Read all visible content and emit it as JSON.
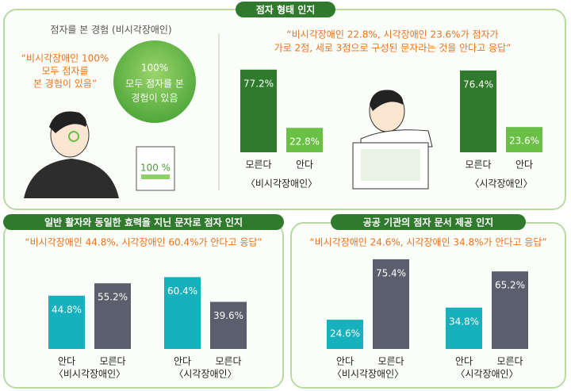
{
  "intro": {
    "title": "점자를 본 경험 (비시각장애인)",
    "quote": [
      "“비시각장애인 100%",
      "모두 점자를",
      "본 경험이 있음”"
    ],
    "bubble": [
      "100%",
      "모두 점자를 본",
      "경험이 있음"
    ],
    "paper": "100 %"
  },
  "chart_data": [
    {
      "type": "bar",
      "title": "점자 형태 인지",
      "subtitle": [
        "“비시각장애인 22.8%, 시각장애인 23.6%가 점자가",
        "가로 2점, 세로 3점으로 구성된 문자라는 것을 안다고 응답”"
      ],
      "series": [
        {
          "name": "〈비시각장애인〉",
          "categories": [
            "모른다",
            "안다"
          ],
          "values": [
            77.2,
            22.8
          ],
          "value_labels": [
            "77.2%",
            "22.8%"
          ],
          "colors": [
            "#2f7a2c",
            "#6abf45"
          ]
        },
        {
          "name": "〈시각장애인〉",
          "categories": [
            "모른다",
            "안다"
          ],
          "values": [
            76.4,
            23.6
          ],
          "value_labels": [
            "76.4%",
            "23.6%"
          ],
          "colors": [
            "#2f7a2c",
            "#6abf45"
          ]
        }
      ]
    },
    {
      "type": "bar",
      "title": "일반 활자와 동일한 효력을 지닌 문자로 점자 인지",
      "subtitle": [
        "“비시각장애인 44.8%, 시각장애인 60.4%가 안다고 응답”"
      ],
      "series": [
        {
          "name": "〈비시각장애인〉",
          "categories": [
            "안다",
            "모른다"
          ],
          "values": [
            44.8,
            55.2
          ],
          "value_labels": [
            "44.8%",
            "55.2%"
          ],
          "colors": [
            "#16b1bc",
            "#5b5e6d"
          ]
        },
        {
          "name": "〈시각장애인〉",
          "categories": [
            "안다",
            "모른다"
          ],
          "values": [
            60.4,
            39.6
          ],
          "value_labels": [
            "60.4%",
            "39.6%"
          ],
          "colors": [
            "#16b1bc",
            "#5b5e6d"
          ]
        }
      ]
    },
    {
      "type": "bar",
      "title": "공공 기관의 점자 문서 제공 인지",
      "subtitle": [
        "“비시각장애인 24.6%, 시각장애인 34.8%가 안다고 응답”"
      ],
      "series": [
        {
          "name": "〈비시각장애인〉",
          "categories": [
            "안다",
            "모른다"
          ],
          "values": [
            24.6,
            75.4
          ],
          "value_labels": [
            "24.6%",
            "75.4%"
          ],
          "colors": [
            "#16b1bc",
            "#5b5e6d"
          ]
        },
        {
          "name": "〈시각장애인〉",
          "categories": [
            "안다",
            "모른다"
          ],
          "values": [
            34.8,
            65.2
          ],
          "value_labels": [
            "34.8%",
            "65.2%"
          ],
          "colors": [
            "#16b1bc",
            "#5b5e6d"
          ]
        }
      ]
    }
  ]
}
